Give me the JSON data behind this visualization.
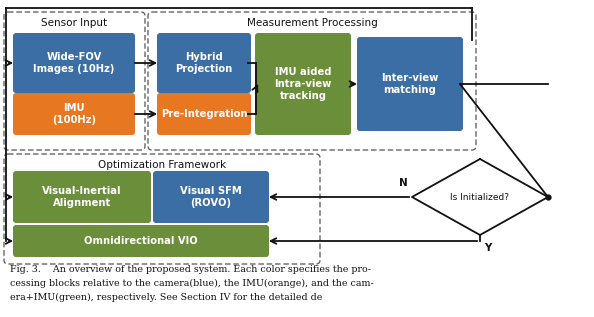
{
  "colors": {
    "blue": "#3A6EA5",
    "orange": "#E87722",
    "green": "#6B8E3A",
    "bg": "#FFFFFF",
    "dashed_border": "#666666",
    "text_white": "#FFFFFF",
    "text_dark": "#111111",
    "arrow": "#111111"
  },
  "sensor_input_label": "Sensor Input",
  "measurement_label": "Measurement Processing",
  "optimization_label": "Optimization Framework",
  "caption_line1": "Fig. 3.    An overview of the proposed system. Each color specifies the pro-",
  "caption_line2": "cessing blocks relative to the camera(blue), the IMU(orange), and the cam-",
  "caption_line3": "era+IMU(green), respectively. See Section IV for the detailed de",
  "wide_fov_label": "Wide-FOV\nImages (10Hz)",
  "imu_label": "IMU\n(100Hz)",
  "hybrid_label": "Hybrid\nProjection",
  "preint_label": "Pre-Integration",
  "imu_aided_label": "IMU aided\nIntra-view\ntracking",
  "interview_label": "Inter-view\nmatching",
  "visual_inertial_label": "Visual-Inertial\nAlignment",
  "visual_sfm_label": "Visual SFM\n(ROVO)",
  "omni_vio_label": "Omnidirectional VIO",
  "is_init_label": "Is Initialized?",
  "N_label": "N",
  "Y_label": "Y"
}
